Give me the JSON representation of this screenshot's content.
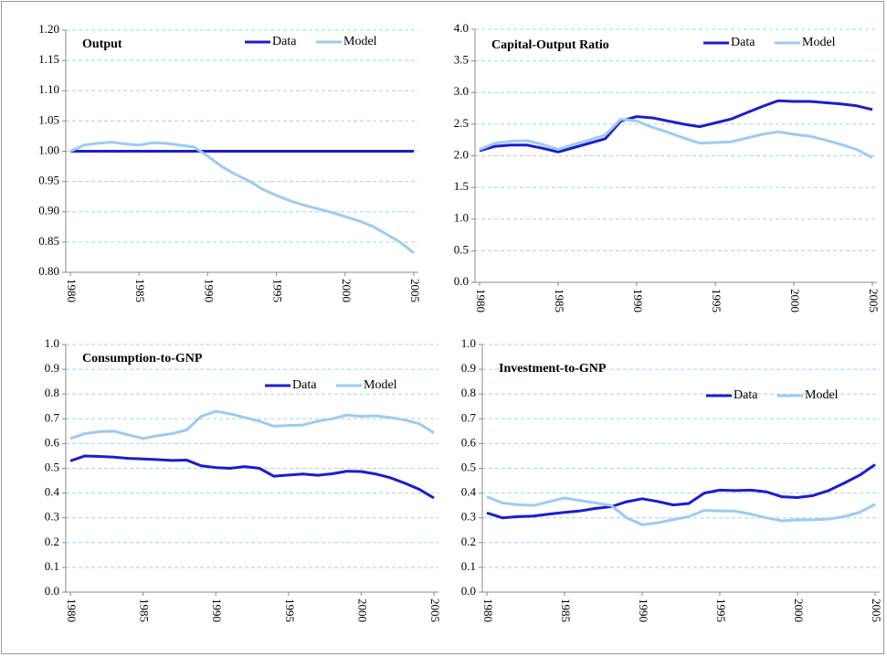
{
  "chart_data": [
    {
      "type": "line",
      "title": "Output",
      "x": [
        1980,
        1981,
        1982,
        1983,
        1984,
        1985,
        1986,
        1987,
        1988,
        1989,
        1990,
        1991,
        1992,
        1993,
        1994,
        1995,
        1996,
        1997,
        1998,
        1999,
        2000,
        2001,
        2002,
        2003,
        2004,
        2005
      ],
      "series": [
        {
          "name": "Data",
          "color": "#1c1ccf",
          "values": [
            1,
            1,
            1,
            1,
            1,
            1,
            1,
            1,
            1,
            1,
            1,
            1,
            1,
            1,
            1,
            1,
            1,
            1,
            1,
            1,
            1,
            1,
            1,
            1,
            1,
            1
          ]
        },
        {
          "name": "Model",
          "color": "#9ccbf2",
          "values": [
            1.0,
            1.01,
            1.013,
            1.015,
            1.012,
            1.01,
            1.014,
            1.013,
            1.01,
            1.007,
            0.992,
            0.975,
            0.962,
            0.951,
            0.937,
            0.927,
            0.918,
            0.911,
            0.905,
            0.899,
            0.892,
            0.885,
            0.876,
            0.863,
            0.85,
            0.832
          ]
        }
      ],
      "xlim": [
        1980,
        2005
      ],
      "xticks": [
        1980,
        1985,
        1990,
        1995,
        2000,
        2005
      ],
      "ylim": [
        0.8,
        1.2
      ],
      "yticks": [
        {
          "value": 0.8,
          "label": "0.80"
        },
        {
          "value": 0.85,
          "label": "0.85"
        },
        {
          "value": 0.9,
          "label": "0.90"
        },
        {
          "value": 0.95,
          "label": "0.95"
        },
        {
          "value": 1.0,
          "label": "1.00"
        },
        {
          "value": 1.05,
          "label": "1.05"
        },
        {
          "value": 1.1,
          "label": "1.10"
        },
        {
          "value": 1.15,
          "label": "1.15"
        },
        {
          "value": 1.2,
          "label": "1.20"
        }
      ],
      "grid": true,
      "legend": "upper right"
    },
    {
      "type": "line",
      "title": "Capital-Output Ratio",
      "x": [
        1980,
        1981,
        1982,
        1983,
        1984,
        1985,
        1986,
        1987,
        1988,
        1989,
        1990,
        1991,
        1992,
        1993,
        1994,
        1995,
        1996,
        1997,
        1998,
        1999,
        2000,
        2001,
        2002,
        2003,
        2004,
        2005
      ],
      "series": [
        {
          "name": "Data",
          "color": "#1c1ccf",
          "values": [
            2.08,
            2.15,
            2.17,
            2.17,
            2.12,
            2.06,
            2.13,
            2.2,
            2.27,
            2.55,
            2.62,
            2.6,
            2.55,
            2.5,
            2.46,
            2.52,
            2.58,
            2.68,
            2.78,
            2.87,
            2.86,
            2.86,
            2.84,
            2.82,
            2.79,
            2.73
          ]
        },
        {
          "name": "Model",
          "color": "#9ccbf2",
          "values": [
            2.1,
            2.2,
            2.23,
            2.24,
            2.18,
            2.1,
            2.18,
            2.25,
            2.33,
            2.58,
            2.55,
            2.45,
            2.37,
            2.28,
            2.2,
            2.21,
            2.22,
            2.28,
            2.34,
            2.38,
            2.34,
            2.31,
            2.25,
            2.18,
            2.1,
            1.97
          ]
        }
      ],
      "xlim": [
        1980,
        2005
      ],
      "xticks": [
        1980,
        1985,
        1990,
        1995,
        2000,
        2005
      ],
      "ylim": [
        0,
        4
      ],
      "yticks": [
        {
          "value": 0,
          "label": "0.0"
        },
        0.5,
        {
          "value": 1,
          "label": "1.0"
        },
        1.5,
        {
          "value": 2,
          "label": "2.0"
        },
        2.5,
        {
          "value": 3,
          "label": "3.0"
        },
        3.5,
        {
          "value": 4,
          "label": "4.0"
        }
      ],
      "grid": true,
      "legend": "upper right"
    },
    {
      "type": "line",
      "title": "Consumption-to-GNP",
      "x": [
        1980,
        1981,
        1982,
        1983,
        1984,
        1985,
        1986,
        1987,
        1988,
        1989,
        1990,
        1991,
        1992,
        1993,
        1994,
        1995,
        1996,
        1997,
        1998,
        1999,
        2000,
        2001,
        2002,
        2003,
        2004,
        2005
      ],
      "series": [
        {
          "name": "Data",
          "color": "#1c1ccf",
          "values": [
            0.53,
            0.55,
            0.548,
            0.545,
            0.54,
            0.538,
            0.535,
            0.532,
            0.533,
            0.51,
            0.503,
            0.5,
            0.507,
            0.5,
            0.468,
            0.473,
            0.477,
            0.472,
            0.478,
            0.488,
            0.487,
            0.477,
            0.462,
            0.44,
            0.415,
            0.38
          ]
        },
        {
          "name": "Model",
          "color": "#9ccbf2",
          "values": [
            0.62,
            0.64,
            0.648,
            0.65,
            0.635,
            0.62,
            0.632,
            0.64,
            0.655,
            0.71,
            0.73,
            0.72,
            0.705,
            0.69,
            0.67,
            0.673,
            0.675,
            0.69,
            0.7,
            0.715,
            0.71,
            0.712,
            0.705,
            0.695,
            0.68,
            0.643
          ]
        }
      ],
      "xlim": [
        1980,
        2005
      ],
      "xticks": [
        1980,
        1985,
        1990,
        1995,
        2000,
        2005
      ],
      "ylim": [
        0,
        1
      ],
      "yticks": [
        {
          "value": 0,
          "label": "0.0"
        },
        0.1,
        0.2,
        0.3,
        0.4,
        0.5,
        0.6,
        0.7,
        0.8,
        0.9,
        {
          "value": 1,
          "label": "1.0"
        }
      ],
      "grid": true,
      "legend": "upper right"
    },
    {
      "type": "line",
      "title": "Investment-to-GNP",
      "x": [
        1980,
        1981,
        1982,
        1983,
        1984,
        1985,
        1986,
        1987,
        1988,
        1989,
        1990,
        1991,
        1992,
        1993,
        1994,
        1995,
        1996,
        1997,
        1998,
        1999,
        2000,
        2001,
        2002,
        2003,
        2004,
        2005
      ],
      "series": [
        {
          "name": "Data",
          "color": "#1c1ccf",
          "values": [
            0.32,
            0.3,
            0.305,
            0.307,
            0.315,
            0.322,
            0.328,
            0.338,
            0.345,
            0.365,
            0.377,
            0.366,
            0.352,
            0.358,
            0.4,
            0.412,
            0.41,
            0.412,
            0.405,
            0.385,
            0.382,
            0.39,
            0.41,
            0.44,
            0.472,
            0.515
          ]
        },
        {
          "name": "Model",
          "color": "#9ccbf2",
          "values": [
            0.385,
            0.36,
            0.353,
            0.35,
            0.365,
            0.38,
            0.37,
            0.36,
            0.35,
            0.3,
            0.272,
            0.28,
            0.293,
            0.305,
            0.33,
            0.328,
            0.327,
            0.315,
            0.3,
            0.288,
            0.292,
            0.292,
            0.295,
            0.305,
            0.322,
            0.355
          ]
        }
      ],
      "xlim": [
        1980,
        2005
      ],
      "xticks": [
        1980,
        1985,
        1990,
        1995,
        2000,
        2005
      ],
      "ylim": [
        0,
        1
      ],
      "yticks": [
        {
          "value": 0,
          "label": "0.0"
        },
        0.1,
        0.2,
        0.3,
        0.4,
        0.5,
        0.6,
        0.7,
        0.8,
        0.9,
        {
          "value": 1,
          "label": "1.0"
        }
      ],
      "grid": true,
      "legend": "upper right"
    }
  ]
}
